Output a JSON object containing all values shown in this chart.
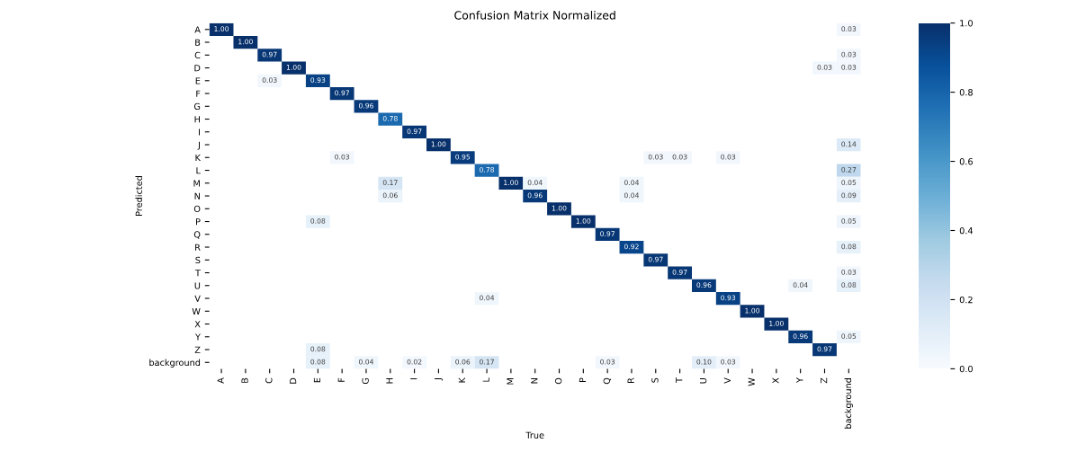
{
  "chart_data": {
    "type": "heatmap",
    "title": "Confusion Matrix Normalized",
    "xlabel": "True",
    "ylabel": "Predicted",
    "categories": [
      "A",
      "B",
      "C",
      "D",
      "E",
      "F",
      "G",
      "H",
      "I",
      "J",
      "K",
      "L",
      "M",
      "N",
      "O",
      "P",
      "Q",
      "R",
      "S",
      "T",
      "U",
      "V",
      "W",
      "X",
      "Y",
      "Z",
      "background"
    ],
    "y_categories": [
      "A",
      "B",
      "C",
      "D",
      "E",
      "F",
      "G",
      "H",
      "I",
      "J",
      "K",
      "L",
      "M",
      "N",
      "O",
      "P",
      "Q",
      "R",
      "S",
      "T",
      "U",
      "V",
      "W",
      "X",
      "Y",
      "Z",
      "background"
    ],
    "cells": [
      [
        1.0,
        null,
        null,
        null,
        null,
        null,
        null,
        null,
        null,
        null,
        null,
        null,
        null,
        null,
        null,
        null,
        null,
        null,
        null,
        null,
        null,
        null,
        null,
        null,
        null,
        null,
        0.03
      ],
      [
        null,
        1.0,
        null,
        null,
        null,
        null,
        null,
        null,
        null,
        null,
        null,
        null,
        null,
        null,
        null,
        null,
        null,
        null,
        null,
        null,
        null,
        null,
        null,
        null,
        null,
        null,
        null
      ],
      [
        null,
        null,
        0.97,
        null,
        null,
        null,
        null,
        null,
        null,
        null,
        null,
        null,
        null,
        null,
        null,
        null,
        null,
        null,
        null,
        null,
        null,
        null,
        null,
        null,
        null,
        null,
        0.03
      ],
      [
        null,
        null,
        null,
        1.0,
        null,
        null,
        null,
        null,
        null,
        null,
        null,
        null,
        null,
        null,
        null,
        null,
        null,
        null,
        null,
        null,
        null,
        null,
        null,
        null,
        null,
        0.03,
        0.03
      ],
      [
        null,
        null,
        0.03,
        null,
        0.93,
        null,
        null,
        null,
        null,
        null,
        null,
        null,
        null,
        null,
        null,
        null,
        null,
        null,
        null,
        null,
        null,
        null,
        null,
        null,
        null,
        null,
        null
      ],
      [
        null,
        null,
        null,
        null,
        null,
        0.97,
        null,
        null,
        null,
        null,
        null,
        null,
        null,
        null,
        null,
        null,
        null,
        null,
        null,
        null,
        null,
        null,
        null,
        null,
        null,
        null,
        null
      ],
      [
        null,
        null,
        null,
        null,
        null,
        null,
        0.96,
        null,
        null,
        null,
        null,
        null,
        null,
        null,
        null,
        null,
        null,
        null,
        null,
        null,
        null,
        null,
        null,
        null,
        null,
        null,
        null
      ],
      [
        null,
        null,
        null,
        null,
        null,
        null,
        null,
        0.78,
        null,
        null,
        null,
        null,
        null,
        null,
        null,
        null,
        null,
        null,
        null,
        null,
        null,
        null,
        null,
        null,
        null,
        null,
        null
      ],
      [
        null,
        null,
        null,
        null,
        null,
        null,
        null,
        null,
        0.97,
        null,
        null,
        null,
        null,
        null,
        null,
        null,
        null,
        null,
        null,
        null,
        null,
        null,
        null,
        null,
        null,
        null,
        null
      ],
      [
        null,
        null,
        null,
        null,
        null,
        null,
        null,
        null,
        null,
        1.0,
        null,
        null,
        null,
        null,
        null,
        null,
        null,
        null,
        null,
        null,
        null,
        null,
        null,
        null,
        null,
        null,
        0.14
      ],
      [
        null,
        null,
        null,
        null,
        null,
        0.03,
        null,
        null,
        null,
        null,
        0.95,
        null,
        null,
        null,
        null,
        null,
        null,
        null,
        0.03,
        0.03,
        null,
        0.03,
        null,
        null,
        null,
        null,
        null
      ],
      [
        null,
        null,
        null,
        null,
        null,
        null,
        null,
        null,
        null,
        null,
        null,
        0.78,
        null,
        null,
        null,
        null,
        null,
        null,
        null,
        null,
        null,
        null,
        null,
        null,
        null,
        null,
        0.27
      ],
      [
        null,
        null,
        null,
        null,
        null,
        null,
        null,
        0.17,
        null,
        null,
        null,
        null,
        1.0,
        0.04,
        null,
        null,
        null,
        0.04,
        null,
        null,
        null,
        null,
        null,
        null,
        null,
        null,
        0.05
      ],
      [
        null,
        null,
        null,
        null,
        null,
        null,
        null,
        0.06,
        null,
        null,
        null,
        null,
        null,
        0.96,
        null,
        null,
        null,
        0.04,
        null,
        null,
        null,
        null,
        null,
        null,
        null,
        null,
        0.09
      ],
      [
        null,
        null,
        null,
        null,
        null,
        null,
        null,
        null,
        null,
        null,
        null,
        null,
        null,
        null,
        1.0,
        null,
        null,
        null,
        null,
        null,
        null,
        null,
        null,
        null,
        null,
        null,
        null
      ],
      [
        null,
        null,
        null,
        null,
        0.08,
        null,
        null,
        null,
        null,
        null,
        null,
        null,
        null,
        null,
        null,
        1.0,
        null,
        null,
        null,
        null,
        null,
        null,
        null,
        null,
        null,
        null,
        0.05
      ],
      [
        null,
        null,
        null,
        null,
        null,
        null,
        null,
        null,
        null,
        null,
        null,
        null,
        null,
        null,
        null,
        null,
        0.97,
        null,
        null,
        null,
        null,
        null,
        null,
        null,
        null,
        null,
        null
      ],
      [
        null,
        null,
        null,
        null,
        null,
        null,
        null,
        null,
        null,
        null,
        null,
        null,
        null,
        null,
        null,
        null,
        null,
        0.92,
        null,
        null,
        null,
        null,
        null,
        null,
        null,
        null,
        0.08
      ],
      [
        null,
        null,
        null,
        null,
        null,
        null,
        null,
        null,
        null,
        null,
        null,
        null,
        null,
        null,
        null,
        null,
        null,
        null,
        0.97,
        null,
        null,
        null,
        null,
        null,
        null,
        null,
        null
      ],
      [
        null,
        null,
        null,
        null,
        null,
        null,
        null,
        null,
        null,
        null,
        null,
        null,
        null,
        null,
        null,
        null,
        null,
        null,
        null,
        0.97,
        null,
        null,
        null,
        null,
        null,
        null,
        0.03
      ],
      [
        null,
        null,
        null,
        null,
        null,
        null,
        null,
        null,
        null,
        null,
        null,
        null,
        null,
        null,
        null,
        null,
        null,
        null,
        null,
        null,
        0.96,
        null,
        null,
        null,
        0.04,
        null,
        0.08
      ],
      [
        null,
        null,
        null,
        null,
        null,
        null,
        null,
        null,
        null,
        null,
        null,
        0.04,
        null,
        null,
        null,
        null,
        null,
        null,
        null,
        null,
        null,
        0.93,
        null,
        null,
        null,
        null,
        null
      ],
      [
        null,
        null,
        null,
        null,
        null,
        null,
        null,
        null,
        null,
        null,
        null,
        null,
        null,
        null,
        null,
        null,
        null,
        null,
        null,
        null,
        null,
        null,
        1.0,
        null,
        null,
        null,
        null
      ],
      [
        null,
        null,
        null,
        null,
        null,
        null,
        null,
        null,
        null,
        null,
        null,
        null,
        null,
        null,
        null,
        null,
        null,
        null,
        null,
        null,
        null,
        null,
        null,
        1.0,
        null,
        null,
        null
      ],
      [
        null,
        null,
        null,
        null,
        null,
        null,
        null,
        null,
        null,
        null,
        null,
        null,
        null,
        null,
        null,
        null,
        null,
        null,
        null,
        null,
        null,
        null,
        null,
        null,
        0.96,
        null,
        0.05
      ],
      [
        null,
        null,
        null,
        null,
        0.08,
        null,
        null,
        null,
        null,
        null,
        null,
        null,
        null,
        null,
        null,
        null,
        null,
        null,
        null,
        null,
        null,
        null,
        null,
        null,
        null,
        0.97,
        null
      ],
      [
        null,
        null,
        null,
        null,
        0.08,
        null,
        0.04,
        null,
        0.02,
        null,
        0.06,
        0.17,
        null,
        null,
        null,
        null,
        0.03,
        null,
        null,
        null,
        0.1,
        0.03,
        null,
        null,
        null,
        null,
        null
      ]
    ],
    "cell_labels": [
      [
        "1.00",
        null,
        null,
        null,
        null,
        null,
        null,
        null,
        null,
        null,
        null,
        null,
        null,
        null,
        null,
        null,
        null,
        null,
        null,
        null,
        null,
        null,
        null,
        null,
        null,
        null,
        "0.03"
      ],
      [
        null,
        "1.00",
        null,
        null,
        null,
        null,
        null,
        null,
        null,
        null,
        null,
        null,
        null,
        null,
        null,
        null,
        null,
        null,
        null,
        null,
        null,
        null,
        null,
        null,
        null,
        null,
        null
      ],
      [
        null,
        null,
        "0.97",
        null,
        null,
        null,
        null,
        null,
        null,
        null,
        null,
        null,
        null,
        null,
        null,
        null,
        null,
        null,
        null,
        null,
        null,
        null,
        null,
        null,
        null,
        null,
        "0.03"
      ],
      [
        null,
        null,
        null,
        "1.00",
        null,
        null,
        null,
        null,
        null,
        null,
        null,
        null,
        null,
        null,
        null,
        null,
        null,
        null,
        null,
        null,
        null,
        null,
        null,
        null,
        null,
        "0.03",
        "0.03"
      ],
      [
        null,
        null,
        "0.03",
        null,
        "0.93",
        null,
        null,
        null,
        null,
        null,
        null,
        null,
        null,
        null,
        null,
        null,
        null,
        null,
        null,
        null,
        null,
        null,
        null,
        null,
        null,
        null,
        null
      ],
      [
        null,
        null,
        null,
        null,
        null,
        "0.97",
        null,
        null,
        null,
        null,
        null,
        null,
        null,
        null,
        null,
        null,
        null,
        null,
        null,
        null,
        null,
        null,
        null,
        null,
        null,
        null,
        null
      ],
      [
        null,
        null,
        null,
        null,
        null,
        null,
        "0.96",
        null,
        null,
        null,
        null,
        null,
        null,
        null,
        null,
        null,
        null,
        null,
        null,
        null,
        null,
        null,
        null,
        null,
        null,
        null,
        null
      ],
      [
        null,
        null,
        null,
        null,
        null,
        null,
        null,
        "0.78",
        null,
        null,
        null,
        null,
        null,
        null,
        null,
        null,
        null,
        null,
        null,
        null,
        null,
        null,
        null,
        null,
        null,
        null,
        null
      ],
      [
        null,
        null,
        null,
        null,
        null,
        null,
        null,
        null,
        "0.97",
        null,
        null,
        null,
        null,
        null,
        null,
        null,
        null,
        null,
        null,
        null,
        null,
        null,
        null,
        null,
        null,
        null,
        null
      ],
      [
        null,
        null,
        null,
        null,
        null,
        null,
        null,
        null,
        null,
        "1.00",
        null,
        null,
        null,
        null,
        null,
        null,
        null,
        null,
        null,
        null,
        null,
        null,
        null,
        null,
        null,
        null,
        "0.14"
      ],
      [
        null,
        null,
        null,
        null,
        null,
        "0.03",
        null,
        null,
        null,
        null,
        "0.95",
        null,
        null,
        null,
        null,
        null,
        null,
        null,
        "0.03",
        "0.03",
        null,
        "0.03",
        null,
        null,
        null,
        null,
        null
      ],
      [
        null,
        null,
        null,
        null,
        null,
        null,
        null,
        null,
        null,
        null,
        null,
        "0.78",
        null,
        null,
        null,
        null,
        null,
        null,
        null,
        null,
        null,
        null,
        null,
        null,
        null,
        null,
        "0.27"
      ],
      [
        null,
        null,
        null,
        null,
        null,
        null,
        null,
        "0.17",
        null,
        null,
        null,
        null,
        "1.00",
        "0.04",
        null,
        null,
        null,
        "0.04",
        null,
        null,
        null,
        null,
        null,
        null,
        null,
        null,
        "0.05"
      ],
      [
        null,
        null,
        null,
        null,
        null,
        null,
        null,
        "0.06",
        null,
        null,
        null,
        null,
        null,
        "0.96",
        null,
        null,
        null,
        "0.04",
        null,
        null,
        null,
        null,
        null,
        null,
        null,
        null,
        "0.09"
      ],
      [
        null,
        null,
        null,
        null,
        null,
        null,
        null,
        null,
        null,
        null,
        null,
        null,
        null,
        null,
        "1.00",
        null,
        null,
        null,
        null,
        null,
        null,
        null,
        null,
        null,
        null,
        null,
        null
      ],
      [
        null,
        null,
        null,
        null,
        "0.08",
        null,
        null,
        null,
        null,
        null,
        null,
        null,
        null,
        null,
        null,
        "1.00",
        null,
        null,
        null,
        null,
        null,
        null,
        null,
        null,
        null,
        null,
        "0.05"
      ],
      [
        null,
        null,
        null,
        null,
        null,
        null,
        null,
        null,
        null,
        null,
        null,
        null,
        null,
        null,
        null,
        null,
        "0.97",
        null,
        null,
        null,
        null,
        null,
        null,
        null,
        null,
        null,
        null
      ],
      [
        null,
        null,
        null,
        null,
        null,
        null,
        null,
        null,
        null,
        null,
        null,
        null,
        null,
        null,
        null,
        null,
        null,
        "0.92",
        null,
        null,
        null,
        null,
        null,
        null,
        null,
        null,
        "0.08"
      ],
      [
        null,
        null,
        null,
        null,
        null,
        null,
        null,
        null,
        null,
        null,
        null,
        null,
        null,
        null,
        null,
        null,
        null,
        null,
        "0.97",
        null,
        null,
        null,
        null,
        null,
        null,
        null,
        null
      ],
      [
        null,
        null,
        null,
        null,
        null,
        null,
        null,
        null,
        null,
        null,
        null,
        null,
        null,
        null,
        null,
        null,
        null,
        null,
        null,
        "0.97",
        null,
        null,
        null,
        null,
        null,
        null,
        "0.03"
      ],
      [
        null,
        null,
        null,
        null,
        null,
        null,
        null,
        null,
        null,
        null,
        null,
        null,
        null,
        null,
        null,
        null,
        null,
        null,
        null,
        null,
        "0.96",
        null,
        null,
        null,
        "0.04",
        null,
        "0.08"
      ],
      [
        null,
        null,
        null,
        null,
        null,
        null,
        null,
        null,
        null,
        null,
        null,
        "0.04",
        null,
        null,
        null,
        null,
        null,
        null,
        null,
        null,
        null,
        "0.93",
        null,
        null,
        null,
        null,
        null
      ],
      [
        null,
        null,
        null,
        null,
        null,
        null,
        null,
        null,
        null,
        null,
        null,
        null,
        null,
        null,
        null,
        null,
        null,
        null,
        null,
        null,
        null,
        null,
        "1.00",
        null,
        null,
        null,
        null
      ],
      [
        null,
        null,
        null,
        null,
        null,
        null,
        null,
        null,
        null,
        null,
        null,
        null,
        null,
        null,
        null,
        null,
        null,
        null,
        null,
        null,
        null,
        null,
        null,
        "1.00",
        null,
        null,
        null
      ],
      [
        null,
        null,
        null,
        null,
        null,
        null,
        null,
        null,
        null,
        null,
        null,
        null,
        null,
        null,
        null,
        null,
        null,
        null,
        null,
        null,
        null,
        null,
        null,
        null,
        "0.96",
        null,
        "0.05"
      ],
      [
        null,
        null,
        null,
        null,
        "0.08",
        null,
        null,
        null,
        null,
        null,
        null,
        null,
        null,
        null,
        null,
        null,
        null,
        null,
        null,
        null,
        null,
        null,
        null,
        null,
        null,
        "0.97",
        null
      ],
      [
        null,
        null,
        null,
        null,
        "0.08",
        null,
        "0.04",
        null,
        "0.02",
        null,
        "0.06",
        "0.17",
        null,
        null,
        null,
        null,
        "0.03",
        null,
        null,
        null,
        "0.10",
        "0.03",
        null,
        null,
        null,
        null,
        null
      ]
    ],
    "clim": [
      0,
      1
    ],
    "cticks": [
      {
        "value": 0,
        "label": "0.0"
      },
      {
        "value": 0.2,
        "label": "0.2"
      },
      {
        "value": 0.4,
        "label": "0.4"
      },
      {
        "value": 0.6,
        "label": "0.6"
      },
      {
        "value": 0.8,
        "label": "0.8"
      },
      {
        "value": 1,
        "label": "1.0"
      }
    ]
  }
}
